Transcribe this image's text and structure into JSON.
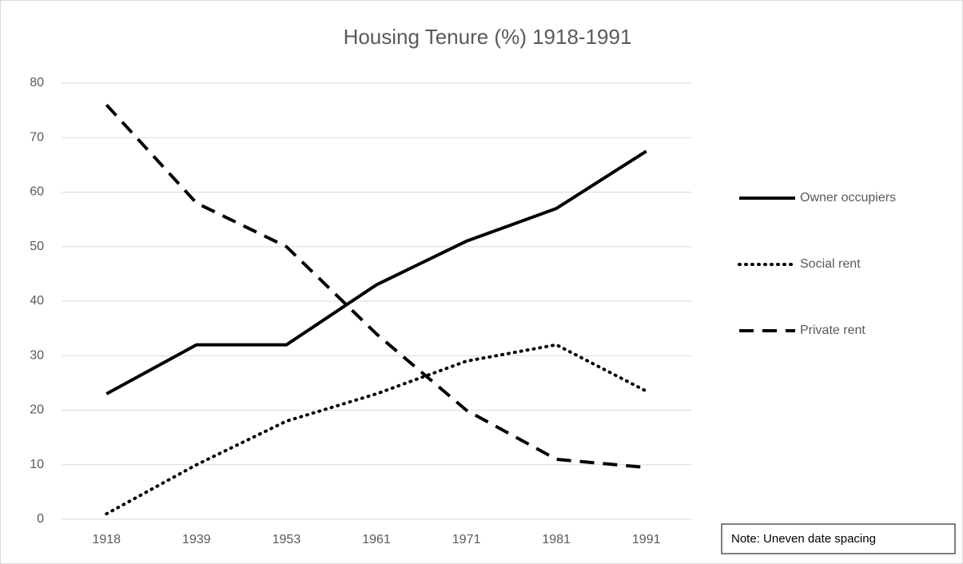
{
  "chart_data": {
    "type": "line",
    "title": "Housing Tenure (%) 1918-1991",
    "categories": [
      "1918",
      "1939",
      "1953",
      "1961",
      "1971",
      "1981",
      "1991"
    ],
    "series": [
      {
        "name": "Owner occupiers",
        "color": "#000000",
        "dash": "solid",
        "values": [
          23,
          32,
          32,
          43,
          51,
          57,
          67.5
        ]
      },
      {
        "name": "Social rent",
        "color": "#000000",
        "dash": "dotted",
        "values": [
          1,
          10,
          18,
          23,
          29,
          32,
          23.5
        ]
      },
      {
        "name": "Private rent",
        "color": "#000000",
        "dash": "dashed",
        "values": [
          76,
          58,
          50,
          34,
          20,
          11,
          9.5
        ]
      }
    ],
    "ylim": [
      0,
      80
    ],
    "yticks": [
      0,
      10,
      20,
      30,
      40,
      50,
      60,
      70,
      80
    ],
    "grid": true,
    "legend": "right",
    "annotation": "Note: Uneven date spacing"
  }
}
